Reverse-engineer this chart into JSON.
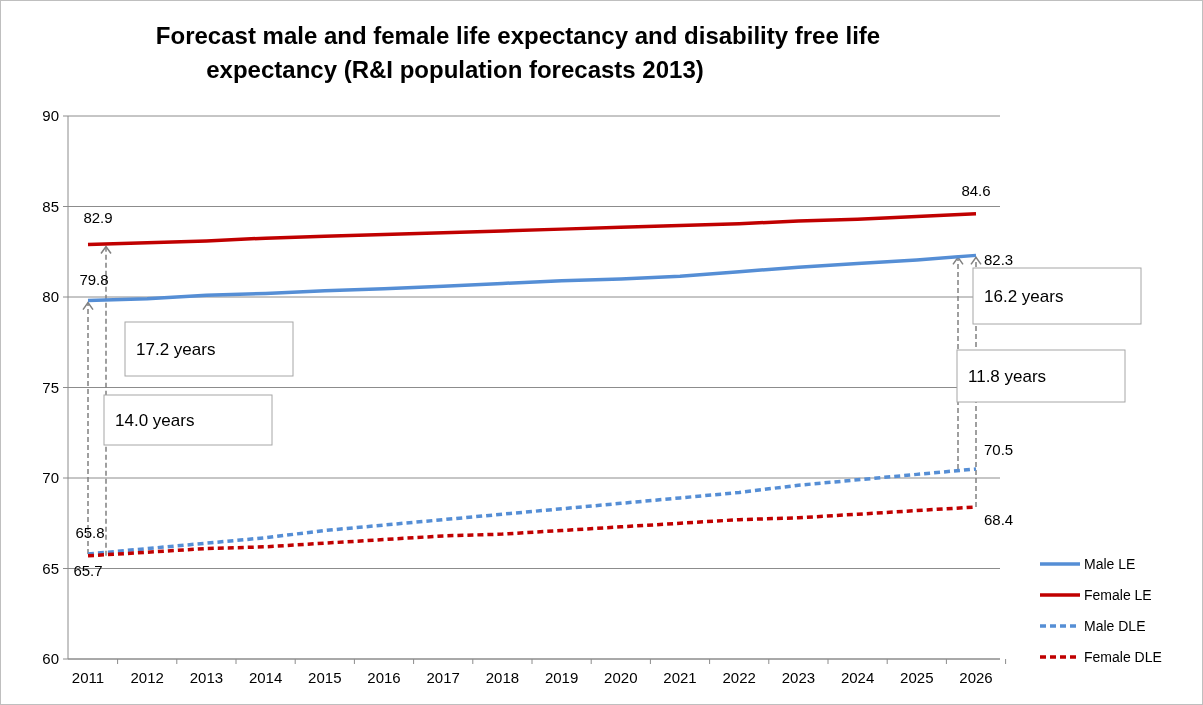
{
  "chart_data": {
    "type": "line",
    "title": "Forecast male and female life expectancy and disability free life expectancy (R&I population forecasts 2013)",
    "categories": [
      "2011",
      "2012",
      "2013",
      "2014",
      "2015",
      "2016",
      "2017",
      "2018",
      "2019",
      "2020",
      "2021",
      "2022",
      "2023",
      "2024",
      "2025",
      "2026"
    ],
    "series": [
      {
        "name": "Male LE",
        "color": "#558ed5",
        "line_style": "solid",
        "values": [
          79.8,
          79.9,
          80.1,
          80.2,
          80.35,
          80.45,
          80.6,
          80.75,
          80.9,
          81.0,
          81.15,
          81.4,
          81.65,
          81.85,
          82.05,
          82.3
        ],
        "value_labels": [
          "79.8",
          null,
          null,
          null,
          null,
          null,
          null,
          null,
          null,
          null,
          null,
          null,
          null,
          null,
          null,
          "82.3"
        ]
      },
      {
        "name": "Female LE",
        "color": "#c00000",
        "line_style": "solid",
        "values": [
          82.9,
          83.0,
          83.1,
          83.25,
          83.35,
          83.45,
          83.55,
          83.65,
          83.75,
          83.85,
          83.95,
          84.05,
          84.2,
          84.3,
          84.45,
          84.6
        ],
        "value_labels": [
          "82.9",
          null,
          null,
          null,
          null,
          null,
          null,
          null,
          null,
          null,
          null,
          null,
          null,
          null,
          null,
          "84.6"
        ]
      },
      {
        "name": "Male DLE",
        "color": "#558ed5",
        "line_style": "dashed",
        "values": [
          65.8,
          66.1,
          66.4,
          66.7,
          67.1,
          67.4,
          67.7,
          68.0,
          68.3,
          68.6,
          68.9,
          69.2,
          69.6,
          69.9,
          70.2,
          70.5
        ],
        "value_labels": [
          "65.8",
          null,
          null,
          null,
          null,
          null,
          null,
          null,
          null,
          null,
          null,
          null,
          null,
          null,
          null,
          "70.5"
        ]
      },
      {
        "name": "Female DLE",
        "color": "#c00000",
        "line_style": "dashed",
        "values": [
          65.7,
          65.9,
          66.1,
          66.2,
          66.4,
          66.6,
          66.8,
          66.9,
          67.1,
          67.3,
          67.5,
          67.7,
          67.8,
          68.0,
          68.2,
          68.4
        ],
        "value_labels": [
          "65.7",
          null,
          null,
          null,
          null,
          null,
          null,
          null,
          null,
          null,
          null,
          null,
          null,
          null,
          null,
          "68.4"
        ]
      }
    ],
    "annotations": [
      "17.2 years",
      "14.0 years",
      "16.2 years",
      "11.8 years"
    ],
    "ylim": [
      60,
      90
    ],
    "yticks": [
      60,
      65,
      70,
      75,
      80,
      85,
      90
    ],
    "grid": "y",
    "legend": "right"
  }
}
